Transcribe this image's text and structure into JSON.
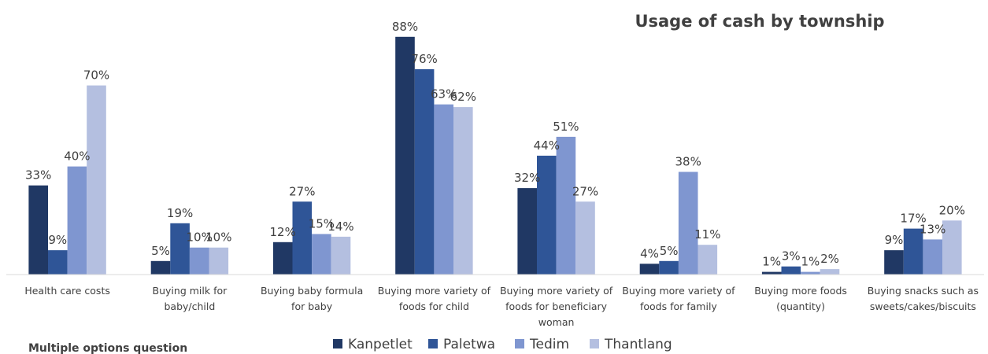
{
  "note": "Multiple options question",
  "colors": {
    "Kanpetlet": "#203864",
    "Paletwa": "#2f5597",
    "Tedim": "#7f96d0",
    "Thantlang": "#b4bfe0",
    "axis": "#d9d9d9",
    "text": "#404040"
  },
  "chart_data": {
    "type": "bar",
    "title": "Usage of cash by township",
    "xlabel": "",
    "ylabel": "",
    "ylim": [
      0,
      100
    ],
    "grid": false,
    "legend_position": "bottom",
    "categories": [
      [
        "Health care costs"
      ],
      [
        "Buying milk for",
        "baby/child"
      ],
      [
        "Buying baby formula",
        "for baby"
      ],
      [
        "Buying more variety of",
        "foods for child"
      ],
      [
        "Buying more variety of",
        "foods for beneficiary",
        "woman"
      ],
      [
        "Buying more variety of",
        "foods for family"
      ],
      [
        "Buying more foods",
        "(quantity)"
      ],
      [
        "Buying snacks such as",
        "sweets/cakes/biscuits"
      ]
    ],
    "series": [
      {
        "name": "Kanpetlet",
        "values": [
          33,
          5,
          12,
          88,
          32,
          4,
          1,
          9
        ]
      },
      {
        "name": "Paletwa",
        "values": [
          9,
          19,
          27,
          76,
          44,
          5,
          3,
          17
        ]
      },
      {
        "name": "Tedim",
        "values": [
          40,
          10,
          15,
          63,
          51,
          38,
          1,
          13
        ]
      },
      {
        "name": "Thantlang",
        "values": [
          70,
          10,
          14,
          62,
          27,
          11,
          2,
          20
        ]
      }
    ],
    "value_suffix": "%"
  }
}
